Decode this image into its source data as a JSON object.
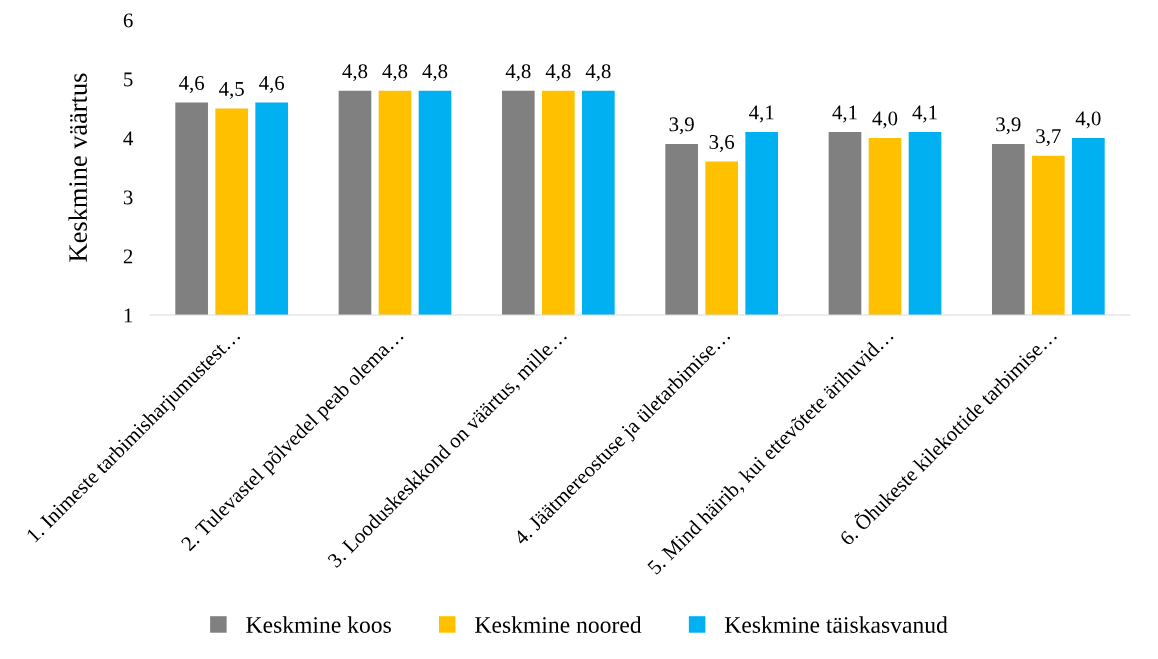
{
  "chart_data": {
    "type": "bar",
    "ylabel": "Keskmine väärtus",
    "categories": [
      "1. Inimeste tarbimisharjumustest…",
      "2. Tulevastel põlvedel peab olema…",
      "3. Looduskeskkond on väärtus, mille…",
      "4. Jäätmereostuse ja ületarbimise…",
      "5. Mind häirib, kui ettevõtete ärihuvid…",
      "6. Õhukeste kilekottide tarbimise…"
    ],
    "series": [
      {
        "name": "Keskmine koos",
        "color": "#808080",
        "values": [
          4.6,
          4.8,
          4.8,
          3.9,
          4.1,
          3.9
        ],
        "value_labels": [
          "4,6",
          "4,8",
          "4,8",
          "3,9",
          "4,1",
          "3,9"
        ]
      },
      {
        "name": "Keskmine noored",
        "color": "#ffc000",
        "values": [
          4.5,
          4.8,
          4.8,
          3.6,
          4.0,
          3.7
        ],
        "value_labels": [
          "4,5",
          "4,8",
          "4,8",
          "3,6",
          "4,0",
          "3,7"
        ]
      },
      {
        "name": "Keskmine täiskasvanud",
        "color": "#00b0f0",
        "values": [
          4.6,
          4.8,
          4.8,
          4.1,
          4.1,
          4.0
        ],
        "value_labels": [
          "4,6",
          "4,8",
          "4,8",
          "4,1",
          "4,1",
          "4,0"
        ]
      }
    ],
    "ylim": [
      1,
      6
    ],
    "yticks": [
      1,
      2,
      3,
      4,
      5,
      6
    ],
    "grid": false,
    "legend": "bottom"
  }
}
